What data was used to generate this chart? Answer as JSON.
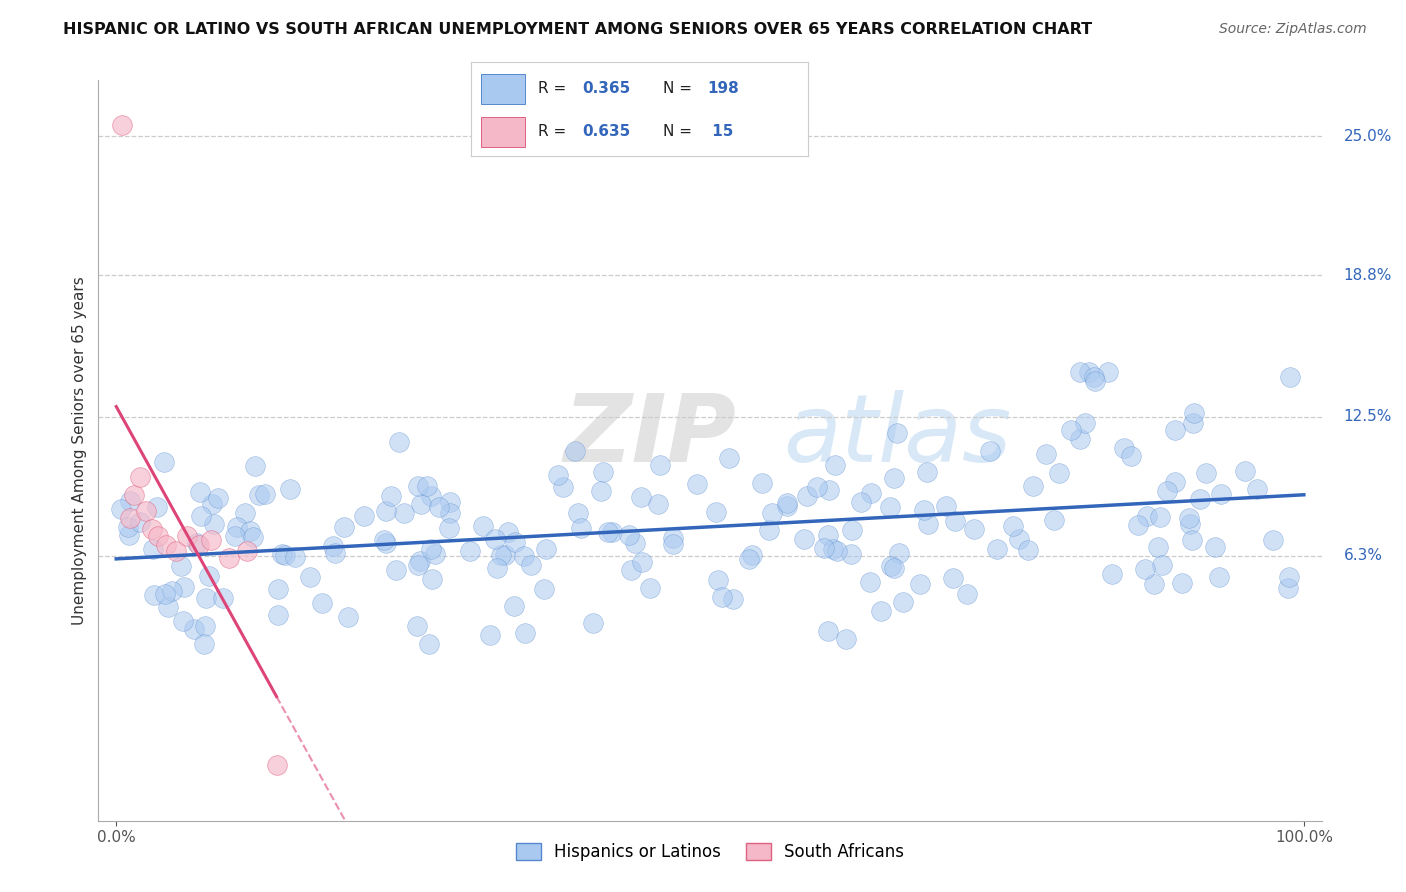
{
  "title": "HISPANIC OR LATINO VS SOUTH AFRICAN UNEMPLOYMENT AMONG SENIORS OVER 65 YEARS CORRELATION CHART",
  "source": "Source: ZipAtlas.com",
  "ylabel": "Unemployment Among Seniors over 65 years",
  "xtick_labels": [
    "0.0%",
    "100.0%"
  ],
  "ytick_labels": [
    "6.3%",
    "12.5%",
    "18.8%",
    "25.0%"
  ],
  "ytick_values": [
    0.063,
    0.125,
    0.188,
    0.25
  ],
  "watermark_zip": "ZIP",
  "watermark_atlas": "atlas",
  "blue_color": "#aac9f0",
  "blue_edge_color": "#5588cc",
  "blue_line_color": "#3366bb",
  "pink_color": "#f5b8c8",
  "pink_edge_color": "#e06080",
  "pink_line_color": "#dd4477",
  "series1_label": "Hispanics or Latinos",
  "series2_label": "South Africans",
  "seed": 7
}
